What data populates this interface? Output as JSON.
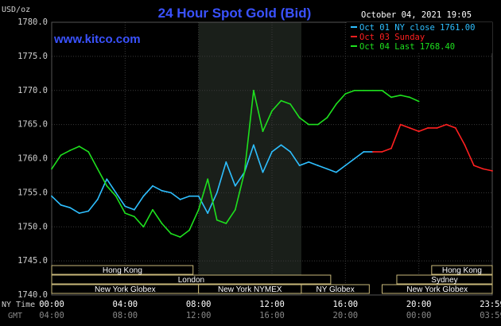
{
  "chart_data": {
    "type": "line",
    "title": "24 Hour Spot Gold (Bid)",
    "unit_label": "USD/oz",
    "date_label": "October 04, 2021 19:05",
    "source": "www.kitco.com",
    "ylim": [
      1740.0,
      1780.0
    ],
    "y_ticks": [
      "1780.0",
      "1775.0",
      "1770.0",
      "1765.0",
      "1760.0",
      "1755.0",
      "1750.0",
      "1745.0",
      "1740.0"
    ],
    "x_row_labels": [
      "NY Time",
      "GMT"
    ],
    "x_ticks_ny": [
      "00:00",
      "04:00",
      "08:00",
      "12:00",
      "16:00",
      "20:00",
      "23:59"
    ],
    "x_ticks_gmt": [
      "04:00",
      "08:00",
      "12:00",
      "16:00",
      "20:00",
      "00:00",
      "03:59"
    ],
    "grid": true,
    "legend_position": "top-right",
    "sessions": {
      "hong_kong": "Hong Kong",
      "london": "London",
      "new_york_globex": "New York Globex",
      "new_york_nymex": "New York NYMEX",
      "ny_globex": "NY Globex",
      "hong_kong_2": "Hong Kong",
      "sydney": "Sydney",
      "new_york_globex_2": "New York Globex"
    },
    "series": [
      {
        "name": "Oct 01 NY close 1761.00",
        "color": "#2ebfff",
        "x_hours": [
          0,
          0.5,
          1,
          1.5,
          2,
          2.5,
          3,
          3.5,
          4,
          4.5,
          5,
          5.5,
          6,
          6.5,
          7,
          7.5,
          8,
          8.5,
          9,
          9.5,
          10,
          10.5,
          11,
          11.5,
          12,
          12.5,
          13,
          13.5,
          14,
          14.5,
          15,
          15.5,
          16,
          16.5,
          17,
          17.5
        ],
        "values": [
          1754.5,
          1753.2,
          1752.8,
          1752.0,
          1752.3,
          1754.0,
          1757.0,
          1755.0,
          1753.0,
          1752.5,
          1754.5,
          1756.0,
          1755.3,
          1755.0,
          1754.0,
          1754.5,
          1754.5,
          1752.0,
          1755.0,
          1759.5,
          1756.0,
          1758.0,
          1762.0,
          1758.0,
          1761.0,
          1762.0,
          1761.0,
          1759.0,
          1759.5,
          1759.0,
          1758.5,
          1758.0,
          1759.0,
          1760.0,
          1761.0,
          1761.0
        ]
      },
      {
        "name": "Oct 03 Sunday",
        "color": "#ff2020",
        "x_hours": [
          17.5,
          18,
          18.5,
          19,
          19.5,
          20,
          20.5,
          21,
          21.5,
          22,
          22.5,
          23,
          23.5,
          24
        ],
        "values": [
          1761.0,
          1761.0,
          1761.5,
          1765.0,
          1764.5,
          1764.0,
          1764.5,
          1764.5,
          1765.0,
          1764.5,
          1762.0,
          1759.0,
          1758.5,
          1758.2
        ]
      },
      {
        "name": "Oct 04 Last 1768.40",
        "color": "#1ee01e",
        "x_hours": [
          0,
          0.5,
          1,
          1.5,
          2,
          2.5,
          3,
          3.5,
          4,
          4.5,
          5,
          5.5,
          6,
          6.5,
          7,
          7.5,
          8,
          8.5,
          9,
          9.5,
          10,
          10.5,
          11,
          11.5,
          12,
          12.5,
          13,
          13.5,
          14,
          14.5,
          15,
          15.5,
          16,
          16.5,
          17,
          17.5,
          18,
          18.5,
          19,
          19.5,
          20
        ],
        "values": [
          1758.5,
          1760.5,
          1761.2,
          1761.8,
          1761.0,
          1758.5,
          1756.0,
          1754.5,
          1752.0,
          1751.5,
          1750.0,
          1752.5,
          1750.5,
          1749.0,
          1748.5,
          1749.5,
          1752.5,
          1757.0,
          1751.0,
          1750.5,
          1752.5,
          1758.0,
          1770.0,
          1764.0,
          1767.0,
          1768.5,
          1768.0,
          1766.0,
          1765.0,
          1765.0,
          1766.0,
          1768.0,
          1769.5,
          1770.0,
          1770.0,
          1770.0,
          1770.0,
          1769.0,
          1769.3,
          1769.0,
          1768.4
        ]
      }
    ]
  }
}
